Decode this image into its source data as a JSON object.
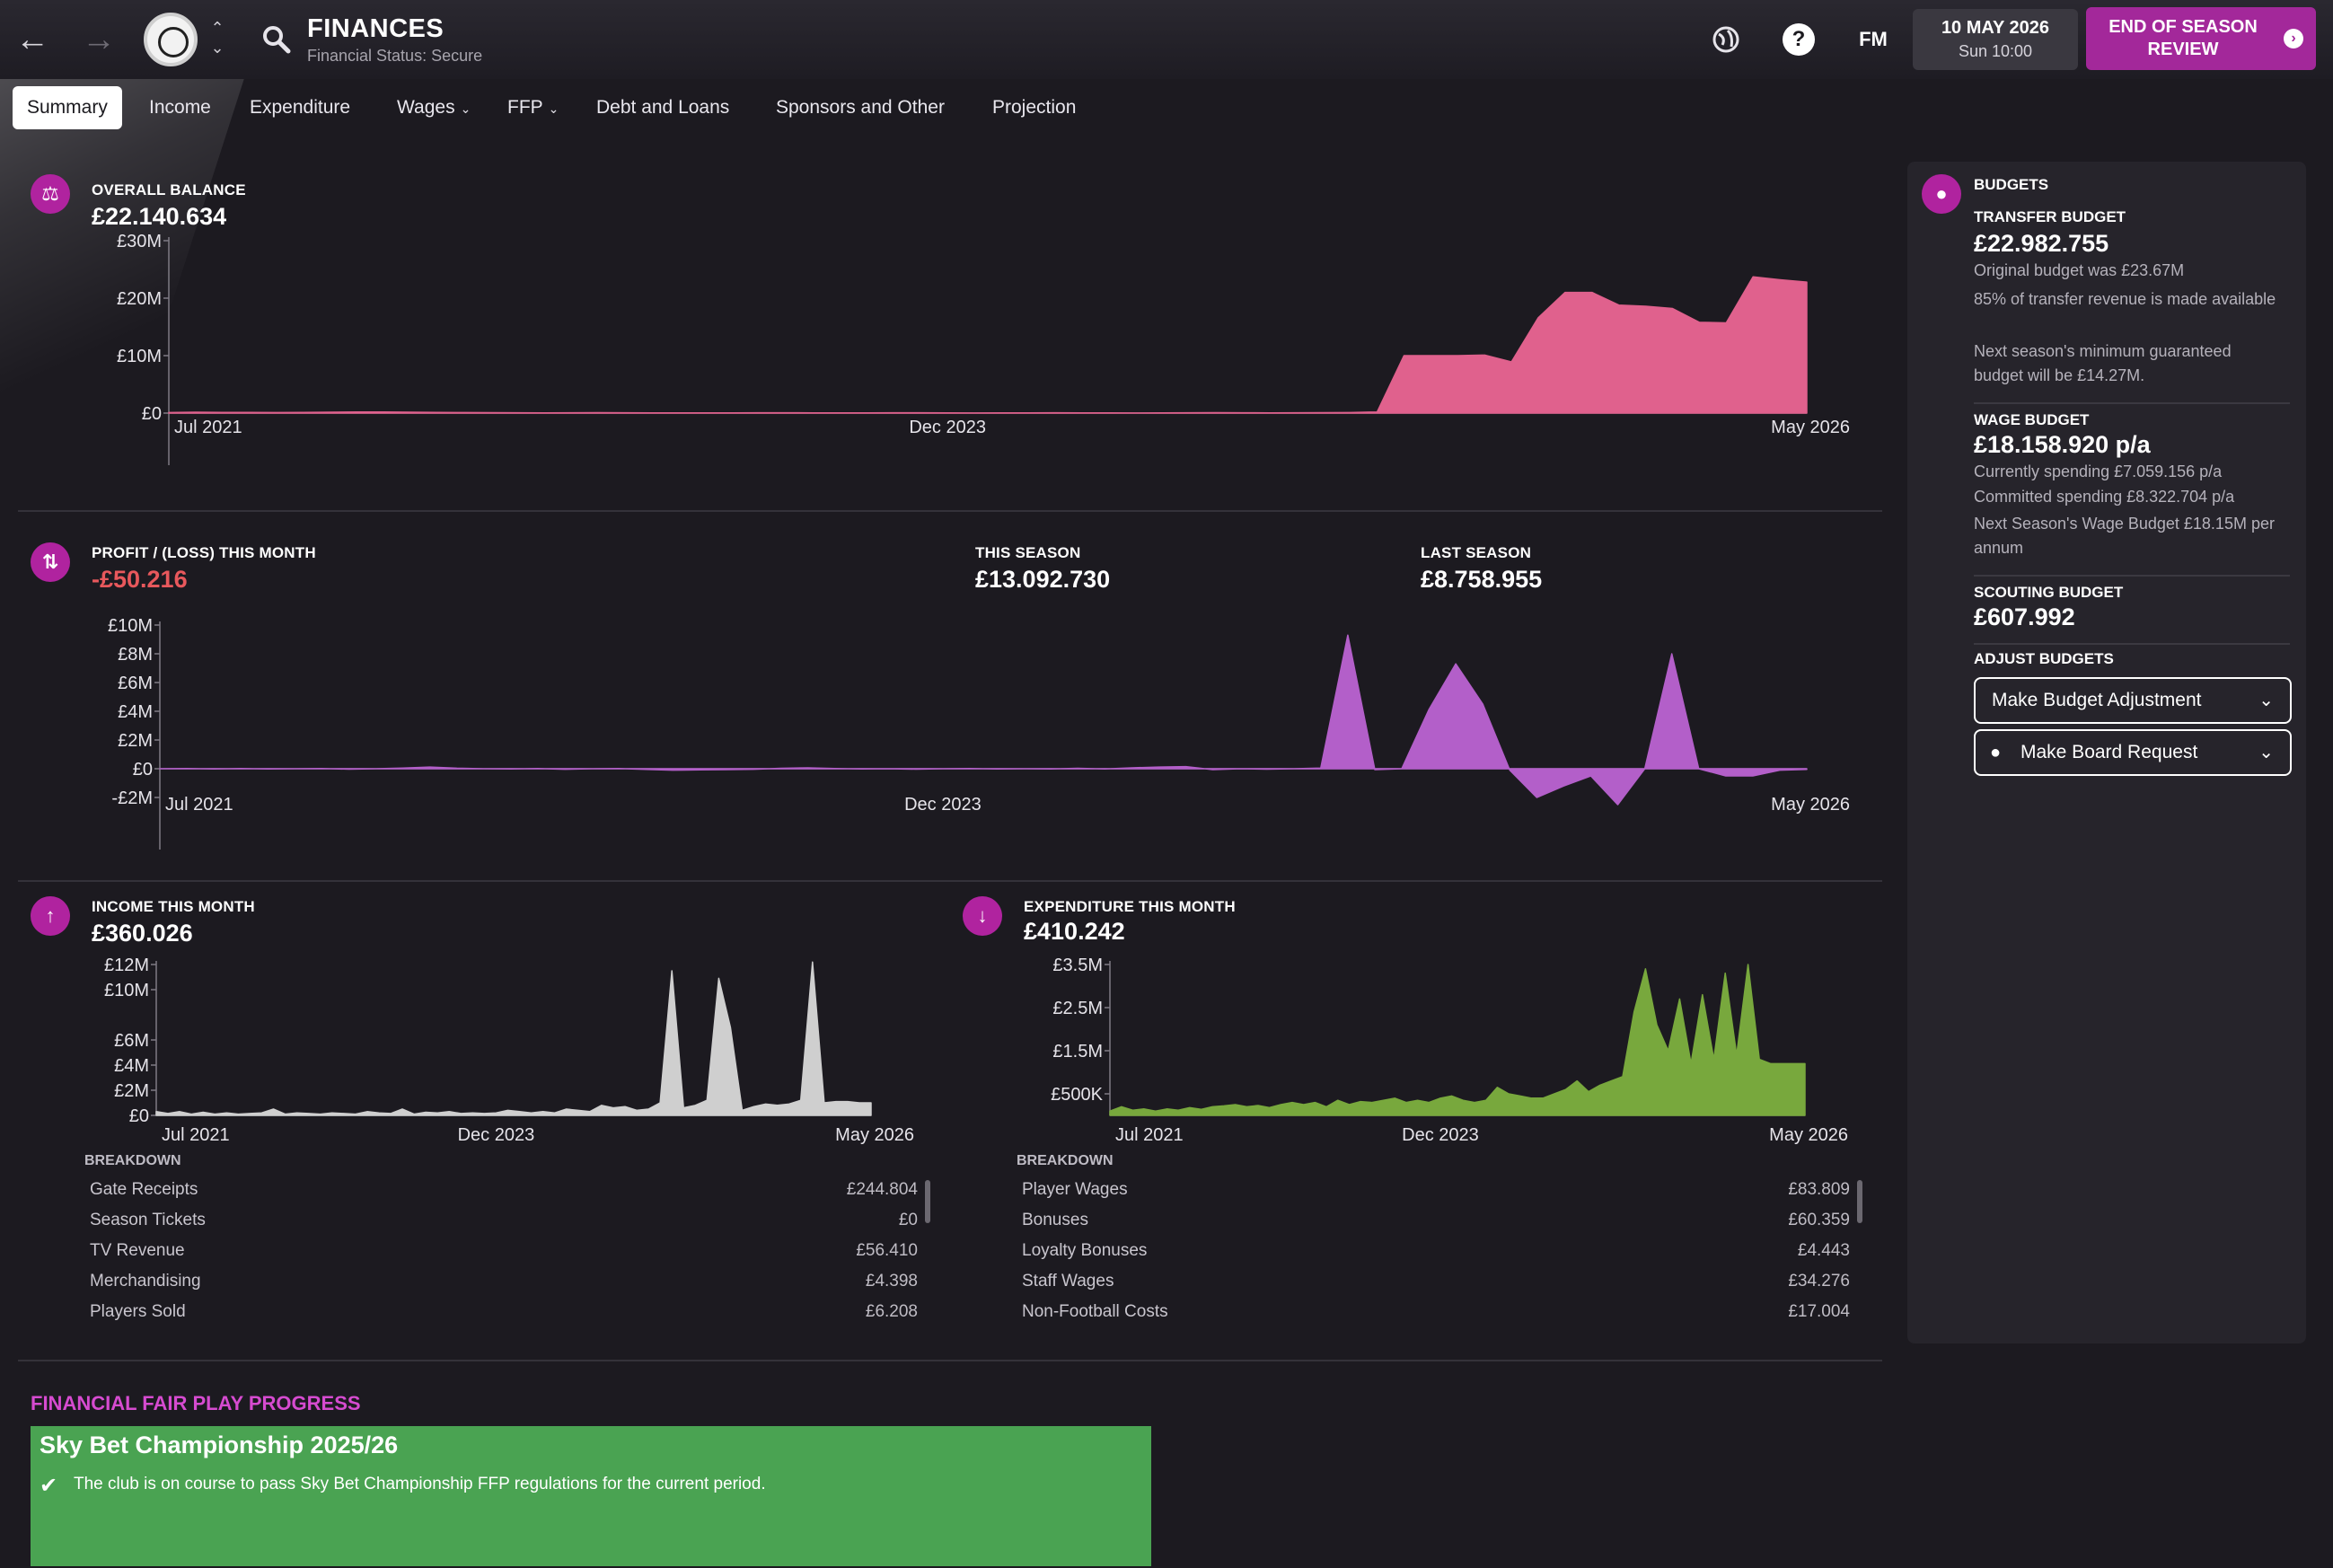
{
  "header": {
    "title": "FINANCES",
    "subtitle": "Financial Status: Secure",
    "date": "10 MAY 2026",
    "time": "Sun 10:00",
    "fm_label": "FM",
    "help_label": "?",
    "eos_button": "END OF SEASON REVIEW",
    "icons": [
      "back-arrow-icon",
      "forward-arrow-icon",
      "club-badge",
      "search-icon",
      "globe-icon",
      "help-icon"
    ]
  },
  "tabs": [
    {
      "label": "Summary",
      "active": true
    },
    {
      "label": "Income"
    },
    {
      "label": "Expenditure"
    },
    {
      "label": "Wages",
      "dropdown": true
    },
    {
      "label": "FFP",
      "dropdown": true
    },
    {
      "label": "Debt and Loans"
    },
    {
      "label": "Sponsors and Other"
    },
    {
      "label": "Projection"
    }
  ],
  "overall": {
    "label": "OVERALL BALANCE",
    "value": "£22.140.634"
  },
  "profit": {
    "label": "PROFIT / (LOSS) THIS MONTH",
    "value": "-£50.216",
    "this_season_label": "THIS SEASON",
    "this_season_value": "£13.092.730",
    "last_season_label": "LAST SEASON",
    "last_season_value": "£8.758.955"
  },
  "income": {
    "label": "INCOME THIS MONTH",
    "value": "£360.026",
    "breakdown_label": "BREAKDOWN",
    "breakdown": [
      {
        "name": "Gate Receipts",
        "value": "£244.804"
      },
      {
        "name": "Season Tickets",
        "value": "£0"
      },
      {
        "name": "TV Revenue",
        "value": "£56.410"
      },
      {
        "name": "Merchandising",
        "value": "£4.398"
      },
      {
        "name": "Players Sold",
        "value": "£6.208"
      }
    ]
  },
  "expenditure": {
    "label": "EXPENDITURE THIS MONTH",
    "value": "£410.242",
    "breakdown_label": "BREAKDOWN",
    "breakdown": [
      {
        "name": "Player Wages",
        "value": "£83.809"
      },
      {
        "name": "Bonuses",
        "value": "£60.359"
      },
      {
        "name": "Loyalty Bonuses",
        "value": "£4.443"
      },
      {
        "name": "Staff Wages",
        "value": "£34.276"
      },
      {
        "name": "Non-Football Costs",
        "value": "£17.004"
      }
    ]
  },
  "budgets": {
    "label": "BUDGETS",
    "transfer_label": "TRANSFER BUDGET",
    "transfer_value": "£22.982.755",
    "transfer_notes": [
      "Original budget was £23.67M",
      "85% of transfer revenue is made available",
      "Next season's minimum guaranteed budget will be £14.27M."
    ],
    "wage_label": "WAGE BUDGET",
    "wage_value": "£18.158.920 p/a",
    "wage_notes": [
      "Currently spending £7.059.156 p/a",
      "Committed spending £8.322.704 p/a",
      "Next Season's Wage Budget £18.15M per annum"
    ],
    "scouting_label": "SCOUTING BUDGET",
    "scouting_value": "£607.992",
    "adjust_label": "ADJUST BUDGETS",
    "adjust_button": "Make Budget Adjustment",
    "board_button": "Make Board Request"
  },
  "ffp": {
    "title": "FINANCIAL FAIR PLAY PROGRESS",
    "league": "Sky Bet Championship 2025/26",
    "message": "The club is on course to pass Sky Bet Championship FFP regulations for the current period."
  },
  "chart_data": [
    {
      "type": "area",
      "ylim": [
        0,
        30000000
      ],
      "yticks": [
        {
          "v": 0,
          "label": "£0"
        },
        {
          "v": 10000000,
          "label": "£10M"
        },
        {
          "v": 20000000,
          "label": "£20M"
        },
        {
          "v": 30000000,
          "label": "£30M"
        }
      ],
      "xticks": [
        {
          "i": 0,
          "label": "Jul 2021"
        },
        {
          "i": 29,
          "label": "Dec 2023"
        },
        {
          "i": 58,
          "label": "May 2026"
        }
      ],
      "color": "#e0618d",
      "values": [
        100000,
        150000,
        120000,
        110000,
        100000,
        130000,
        160000,
        200000,
        180000,
        150000,
        120000,
        100000,
        80000,
        60000,
        40000,
        60000,
        80000,
        60000,
        50000,
        40000,
        30000,
        50000,
        70000,
        60000,
        40000,
        30000,
        50000,
        70000,
        60000,
        40000,
        20000,
        30000,
        50000,
        60000,
        40000,
        30000,
        20000,
        50000,
        60000,
        80000,
        60000,
        50000,
        70000,
        80000,
        100000,
        200000,
        10000000,
        10000000,
        10000000,
        10100000,
        8900000,
        16600000,
        21000000,
        21000000,
        18800000,
        18600000,
        18200000,
        15800000,
        15700000,
        23700000,
        23200000,
        22800000
      ]
    },
    {
      "type": "area",
      "ylim": [
        -2000000,
        10000000
      ],
      "yticks": [
        {
          "v": -2000000,
          "label": "-£2M"
        },
        {
          "v": 0,
          "label": "£0"
        },
        {
          "v": 2000000,
          "label": "£2M"
        },
        {
          "v": 4000000,
          "label": "£4M"
        },
        {
          "v": 6000000,
          "label": "£6M"
        },
        {
          "v": 8000000,
          "label": "£8M"
        },
        {
          "v": 10000000,
          "label": "£10M"
        }
      ],
      "xticks": [
        {
          "i": 0,
          "label": "Jul 2021"
        },
        {
          "i": 29,
          "label": "Dec 2023"
        },
        {
          "i": 58,
          "label": "May 2026"
        }
      ],
      "color": "#b35fc9",
      "values": [
        0,
        20000,
        -20000,
        10000,
        -10000,
        0,
        20000,
        -30000,
        0,
        50000,
        120000,
        40000,
        0,
        -20000,
        10000,
        -40000,
        0,
        20000,
        -50000,
        -100000,
        -80000,
        -60000,
        -40000,
        30000,
        60000,
        20000,
        -10000,
        0,
        -30000,
        0,
        10000,
        -20000,
        0,
        -10000,
        30000,
        -20000,
        60000,
        120000,
        150000,
        -60000,
        0,
        -30000,
        0,
        50000,
        9300000,
        -60000,
        0,
        4100000,
        7300000,
        4500000,
        -100000,
        -2000000,
        -1200000,
        -500000,
        -2500000,
        0,
        8000000,
        0,
        -500000,
        -500000,
        -100000,
        -50000
      ]
    },
    {
      "type": "area",
      "ylim": [
        0,
        12000000
      ],
      "yticks": [
        {
          "v": 0,
          "label": "£0"
        },
        {
          "v": 2000000,
          "label": "£2M"
        },
        {
          "v": 4000000,
          "label": "£4M"
        },
        {
          "v": 6000000,
          "label": "£6M"
        },
        {
          "v": 10000000,
          "label": "£10M"
        },
        {
          "v": 12000000,
          "label": "£12M"
        }
      ],
      "xticks": [
        {
          "i": 0,
          "label": "Jul 2021"
        },
        {
          "i": 29,
          "label": "Dec 2023"
        },
        {
          "i": 58,
          "label": "May 2026"
        }
      ],
      "color": "#cfcfcf",
      "values": [
        300000,
        150000,
        300000,
        100000,
        250000,
        100000,
        200000,
        100000,
        150000,
        200000,
        500000,
        100000,
        200000,
        150000,
        100000,
        200000,
        150000,
        100000,
        300000,
        200000,
        150000,
        500000,
        100000,
        250000,
        200000,
        300000,
        150000,
        200000,
        150000,
        200000,
        400000,
        300000,
        200000,
        300000,
        200000,
        500000,
        400000,
        300000,
        800000,
        600000,
        700000,
        400000,
        500000,
        1000000,
        11500000,
        600000,
        800000,
        1200000,
        10900000,
        7000000,
        400000,
        700000,
        900000,
        800000,
        900000,
        1200000,
        12200000,
        1000000,
        1100000,
        1100000,
        1000000,
        1000000
      ]
    },
    {
      "type": "area",
      "ylim": [
        0,
        3500000
      ],
      "yticks": [
        {
          "v": 500000,
          "label": "£500K"
        },
        {
          "v": 1500000,
          "label": "£1.5M"
        },
        {
          "v": 2500000,
          "label": "£2.5M"
        },
        {
          "v": 3500000,
          "label": "£3.5M"
        }
      ],
      "xticks": [
        {
          "i": 0,
          "label": "Jul 2021"
        },
        {
          "i": 29,
          "label": "Dec 2023"
        },
        {
          "i": 58,
          "label": "May 2026"
        }
      ],
      "color": "#78a83d",
      "values": [
        100000,
        200000,
        120000,
        150000,
        100000,
        150000,
        120000,
        180000,
        140000,
        200000,
        220000,
        250000,
        200000,
        230000,
        180000,
        250000,
        300000,
        250000,
        300000,
        200000,
        350000,
        250000,
        320000,
        300000,
        350000,
        400000,
        300000,
        350000,
        300000,
        400000,
        450000,
        350000,
        300000,
        350000,
        650000,
        500000,
        450000,
        400000,
        400000,
        500000,
        600000,
        800000,
        550000,
        700000,
        800000,
        900000,
        2400000,
        3400000,
        2100000,
        1500000,
        2700000,
        1200000,
        2800000,
        1300000,
        3300000,
        1400000,
        3500000,
        1300000,
        1200000,
        1200000,
        1200000,
        1200000
      ]
    }
  ]
}
